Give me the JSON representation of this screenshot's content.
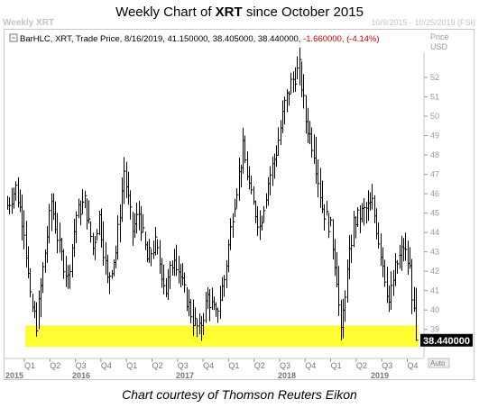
{
  "header": {
    "title_prefix": "Weekly Chart of ",
    "title_symbol": "XRT",
    "title_suffix": " since October 2015",
    "watermark_left": "Weekly XRT",
    "watermark_right": "10/9/2015 - 10/25/2019 (FSI)"
  },
  "legend": {
    "text_main": "BarHLC, XRT, Trade Price, 8/16/2019, 41.150000, 38.405000, 38.440000, ",
    "text_change": "-1.660000, (-4.14%)"
  },
  "axis": {
    "y_header_price": "Price",
    "y_header_currency": "USD",
    "auto_button": "Auto",
    "last_price": "38.440000"
  },
  "caption": "Chart courtesy of Thomson Reuters Eikon",
  "colors": {
    "bars": "#000000",
    "highlight_band": "#ffff33",
    "change_text": "#cc0000",
    "grid": "#c8c8c8"
  },
  "chart_data": {
    "type": "ohlc",
    "title": "Weekly Chart of XRT since October 2015",
    "series_name": "XRT",
    "ylim": [
      37.5,
      53.3
    ],
    "yticks": [
      39,
      40,
      41,
      42,
      43,
      44,
      45,
      46,
      47,
      48,
      49,
      50,
      51,
      52
    ],
    "grid": false,
    "x_quarter_labels": [
      "Q1",
      "Q2",
      "Q3",
      "Q4",
      "Q1",
      "Q2",
      "Q3",
      "Q4",
      "Q1",
      "Q2",
      "Q3",
      "Q4",
      "Q1",
      "Q2",
      "Q3",
      "Q4"
    ],
    "x_year_labels": [
      "2015",
      "2016",
      "2017",
      "2018",
      "2019"
    ],
    "highlight_band": {
      "from": 38.1,
      "to": 39.2
    },
    "last_close": 38.44,
    "anchors": [
      {
        "week": 0,
        "close": 45.4
      },
      {
        "week": 4,
        "close": 46.3
      },
      {
        "week": 8,
        "close": 44.2
      },
      {
        "week": 11,
        "close": 40.5
      },
      {
        "week": 14,
        "close": 39.3
      },
      {
        "week": 17,
        "close": 42.1
      },
      {
        "week": 21,
        "close": 45.6
      },
      {
        "week": 25,
        "close": 43.2
      },
      {
        "week": 29,
        "close": 41.6
      },
      {
        "week": 33,
        "close": 44.9
      },
      {
        "week": 37,
        "close": 45.6
      },
      {
        "week": 41,
        "close": 43.2
      },
      {
        "week": 44,
        "close": 44.8
      },
      {
        "week": 48,
        "close": 41.5
      },
      {
        "week": 52,
        "close": 43.0
      },
      {
        "week": 56,
        "close": 47.2
      },
      {
        "week": 60,
        "close": 44.1
      },
      {
        "week": 63,
        "close": 45.0
      },
      {
        "week": 67,
        "close": 42.6
      },
      {
        "week": 71,
        "close": 43.4
      },
      {
        "week": 76,
        "close": 41.0
      },
      {
        "week": 80,
        "close": 42.9
      },
      {
        "week": 85,
        "close": 40.9
      },
      {
        "week": 89,
        "close": 39.5
      },
      {
        "week": 92,
        "close": 38.9
      },
      {
        "week": 96,
        "close": 40.7
      },
      {
        "week": 100,
        "close": 39.7
      },
      {
        "week": 104,
        "close": 41.6
      },
      {
        "week": 108,
        "close": 45.0
      },
      {
        "week": 113,
        "close": 48.3
      },
      {
        "week": 117,
        "close": 45.8
      },
      {
        "week": 121,
        "close": 44.3
      },
      {
        "week": 125,
        "close": 46.6
      },
      {
        "week": 129,
        "close": 48.2
      },
      {
        "week": 133,
        "close": 50.6
      },
      {
        "week": 136,
        "close": 51.7
      },
      {
        "week": 140,
        "close": 52.5
      },
      {
        "week": 143,
        "close": 49.8
      },
      {
        "week": 147,
        "close": 48.2
      },
      {
        "week": 151,
        "close": 45.3
      },
      {
        "week": 155,
        "close": 44.2
      },
      {
        "week": 158,
        "close": 41.7
      },
      {
        "week": 160,
        "close": 38.7
      },
      {
        "week": 162,
        "close": 41.0
      },
      {
        "week": 166,
        "close": 44.5
      },
      {
        "week": 170,
        "close": 45.0
      },
      {
        "week": 175,
        "close": 45.5
      },
      {
        "week": 180,
        "close": 42.4
      },
      {
        "week": 183,
        "close": 40.4
      },
      {
        "week": 186,
        "close": 42.1
      },
      {
        "week": 190,
        "close": 43.3
      },
      {
        "week": 193,
        "close": 42.1
      },
      {
        "week": 196,
        "close": 38.44
      }
    ]
  }
}
